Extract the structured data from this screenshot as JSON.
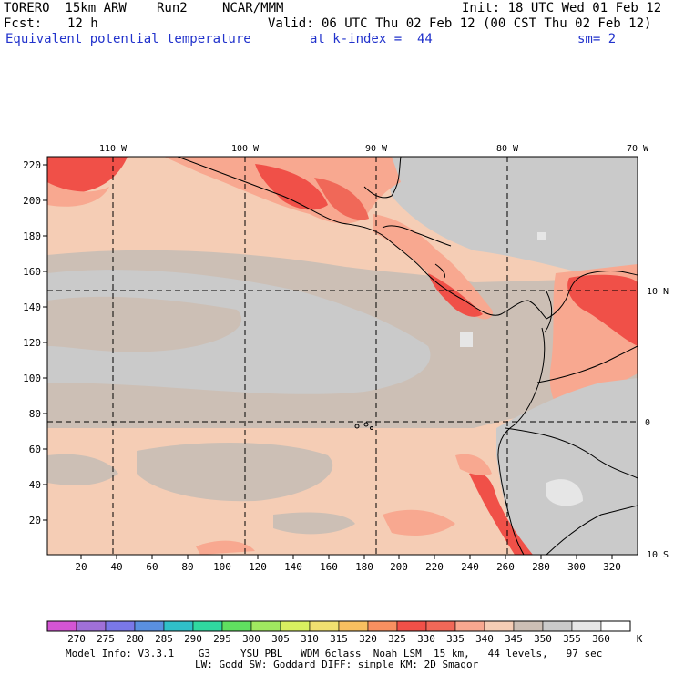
{
  "header": {
    "model": "TORERO  15km ARW",
    "run": "Run2",
    "org": "NCAR/MMM",
    "init": "Init: 18 UTC Wed 01 Feb 12",
    "fcst_label": "Fcst:",
    "fcst_value": "12 h",
    "valid": "Valid: 06 UTC Thu 02 Feb 12 (00 CST Thu 02 Feb 12)",
    "field": "Equivalent potential temperature",
    "level": "at k-index =  44",
    "smoothing": "sm= 2"
  },
  "map": {
    "top_lon_labels": [
      "110 W",
      "100 W",
      "90 W",
      "80 W",
      "70 W"
    ],
    "right_lat_labels": [
      "10 N",
      "0",
      "10 S"
    ],
    "y_ticks": [
      "220",
      "200",
      "180",
      "160",
      "140",
      "120",
      "100",
      "80",
      "60",
      "40",
      "20"
    ],
    "x_ticks": [
      "20",
      "40",
      "60",
      "80",
      "100",
      "120",
      "140",
      "160",
      "180",
      "200",
      "220",
      "240",
      "260",
      "280",
      "300",
      "320"
    ]
  },
  "colorbar": {
    "labels": [
      "270",
      "275",
      "280",
      "285",
      "290",
      "295",
      "300",
      "305",
      "310",
      "315",
      "320",
      "325",
      "330",
      "335",
      "340",
      "345",
      "350",
      "355",
      "360"
    ],
    "unit": "K",
    "colors": [
      "#d455d4",
      "#a070d8",
      "#7a78e8",
      "#5a90e0",
      "#30c0c8",
      "#30d8a0",
      "#60e060",
      "#a0e860",
      "#d8f060",
      "#f0e070",
      "#f8c060",
      "#f89060",
      "#f05048",
      "#f06858",
      "#f8a890",
      "#f5cdb5",
      "#ccbfb5",
      "#cacaca",
      "#e6e6e6",
      "#ffffff"
    ]
  },
  "field_colors": {
    "peach": "#f5cdb5",
    "taupe": "#ccbfb5",
    "gray": "#cacaca",
    "salmon": "#f8a890",
    "red": "#f05048",
    "light": "#e6e6e6"
  },
  "footer": {
    "line1": "Model Info: V3.3.1    G3     YSU PBL   WDM 6class  Noah LSM  15 km,   44 levels,   97 sec",
    "line2": "LW: Godd SW: Goddard DIFF: simple KM: 2D Smagor"
  }
}
